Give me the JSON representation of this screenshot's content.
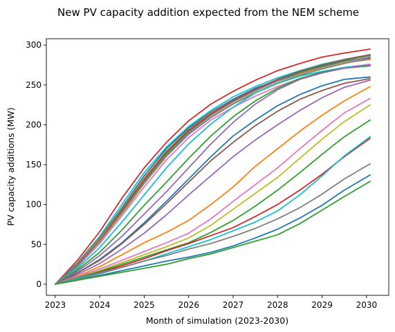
{
  "chart_data": {
    "type": "line",
    "title": "New PV capacity addition expected from the NEM scheme",
    "xlabel": "Month of simulation (2023-2030)",
    "ylabel": "PV capacity additions (MW)",
    "xlim": [
      2022.8,
      2030.5
    ],
    "ylim": [
      -14,
      308
    ],
    "xticks": [
      2023,
      2024,
      2025,
      2026,
      2027,
      2028,
      2029,
      2030
    ],
    "yticks": [
      0,
      50,
      100,
      150,
      200,
      250,
      300
    ],
    "xticklabels": [
      "2023",
      "2024",
      "2025",
      "2026",
      "2027",
      "2028",
      "2029",
      "2030"
    ],
    "yticklabels": [
      "0",
      "50",
      "100",
      "150",
      "200",
      "250",
      "300"
    ],
    "grid": false,
    "legend": "none",
    "x": [
      2023,
      2023.5,
      2024,
      2024.5,
      2025,
      2025.5,
      2026,
      2026.5,
      2027,
      2027.5,
      2028,
      2028.5,
      2029,
      2029.5,
      2030.08
    ],
    "series": [
      {
        "color": "#d62728",
        "values": [
          0,
          30,
          66,
          108,
          146,
          178,
          205,
          226,
          242,
          256,
          268,
          277,
          285,
          290,
          295
        ]
      },
      {
        "color": "#17becf",
        "values": [
          0,
          27,
          60,
          100,
          140,
          172,
          198,
          218,
          235,
          248,
          259,
          268,
          276,
          282,
          287
        ]
      },
      {
        "color": "#1f77b4",
        "values": [
          0,
          26,
          58,
          96,
          136,
          170,
          196,
          216,
          232,
          246,
          256,
          265,
          273,
          280,
          284
        ]
      },
      {
        "color": "#ff7f0e",
        "values": [
          0,
          25,
          57,
          94,
          133,
          167,
          194,
          215,
          231,
          245,
          256,
          265,
          272,
          278,
          282
        ]
      },
      {
        "color": "#2ca02c",
        "values": [
          0,
          24,
          55,
          92,
          130,
          164,
          192,
          213,
          230,
          244,
          256,
          266,
          274,
          281,
          287
        ]
      },
      {
        "color": "#9467bd",
        "values": [
          0,
          23,
          53,
          90,
          128,
          162,
          190,
          212,
          229,
          243,
          255,
          264,
          272,
          279,
          285
        ]
      },
      {
        "color": "#8c564b",
        "values": [
          0,
          24,
          55,
          93,
          131,
          166,
          193,
          214,
          231,
          245,
          257,
          267,
          275,
          282,
          288
        ]
      },
      {
        "color": "#bcbd22",
        "values": [
          0,
          22,
          52,
          88,
          126,
          160,
          188,
          210,
          227,
          241,
          253,
          263,
          271,
          278,
          283
        ]
      },
      {
        "color": "#e377c2",
        "values": [
          0,
          22,
          51,
          86,
          122,
          156,
          184,
          206,
          222,
          236,
          248,
          258,
          266,
          272,
          276
        ]
      },
      {
        "color": "#7f7f7f",
        "values": [
          0,
          23,
          54,
          90,
          127,
          161,
          188,
          209,
          226,
          240,
          252,
          262,
          270,
          277,
          283
        ]
      },
      {
        "color": "#17becf",
        "values": [
          0,
          20,
          46,
          78,
          112,
          146,
          176,
          201,
          222,
          240,
          252,
          261,
          267,
          272,
          275
        ]
      },
      {
        "color": "#2ca02c",
        "values": [
          0,
          18,
          40,
          68,
          99,
          128,
          158,
          186,
          210,
          230,
          246,
          258,
          266,
          271,
          274
        ]
      },
      {
        "color": "#9467bd",
        "values": [
          0,
          16,
          36,
          60,
          88,
          116,
          146,
          176,
          203,
          226,
          244,
          257,
          265,
          271,
          275
        ]
      },
      {
        "color": "#1f77b4",
        "values": [
          0,
          14,
          31,
          52,
          77,
          104,
          132,
          160,
          186,
          206,
          224,
          238,
          249,
          257,
          260
        ]
      },
      {
        "color": "#8c564b",
        "values": [
          0,
          14,
          30,
          51,
          75,
          101,
          128,
          155,
          178,
          199,
          217,
          232,
          243,
          252,
          258
        ]
      },
      {
        "color": "#9467bd",
        "values": [
          0,
          12,
          26,
          44,
          64,
          87,
          112,
          136,
          160,
          181,
          200,
          218,
          234,
          247,
          256
        ]
      },
      {
        "color": "#ff7f0e",
        "values": [
          0,
          10,
          22,
          37,
          52,
          65,
          80,
          100,
          122,
          148,
          170,
          192,
          212,
          230,
          248
        ]
      },
      {
        "color": "#e377c2",
        "values": [
          0,
          9,
          19,
          30,
          41,
          52,
          64,
          82,
          104,
          125,
          146,
          170,
          193,
          215,
          233
        ]
      },
      {
        "color": "#bcbd22",
        "values": [
          0,
          8,
          17,
          27,
          37,
          47,
          58,
          74,
          94,
          114,
          134,
          158,
          182,
          204,
          225
        ]
      },
      {
        "color": "#2ca02c",
        "values": [
          0,
          8,
          16,
          25,
          34,
          43,
          52,
          65,
          80,
          98,
          118,
          140,
          163,
          185,
          206
        ]
      },
      {
        "color": "#d62728",
        "values": [
          0,
          7,
          15,
          23,
          32,
          42,
          51,
          61,
          71,
          85,
          100,
          118,
          138,
          160,
          183
        ]
      },
      {
        "color": "#17becf",
        "values": [
          0,
          7,
          14,
          21,
          29,
          38,
          47,
          56,
          67,
          78,
          92,
          112,
          136,
          161,
          185
        ]
      },
      {
        "color": "#7f7f7f",
        "values": [
          0,
          6,
          13,
          21,
          29,
          36,
          44,
          51,
          60,
          70,
          82,
          96,
          113,
          132,
          151
        ]
      },
      {
        "color": "#1f77b4",
        "values": [
          0,
          5,
          11,
          17,
          23,
          29,
          34,
          40,
          48,
          58,
          69,
          83,
          99,
          118,
          137
        ]
      },
      {
        "color": "#2ca02c",
        "values": [
          0,
          5,
          10,
          15,
          20,
          25,
          32,
          38,
          46,
          54,
          62,
          76,
          93,
          110,
          129
        ]
      }
    ]
  }
}
